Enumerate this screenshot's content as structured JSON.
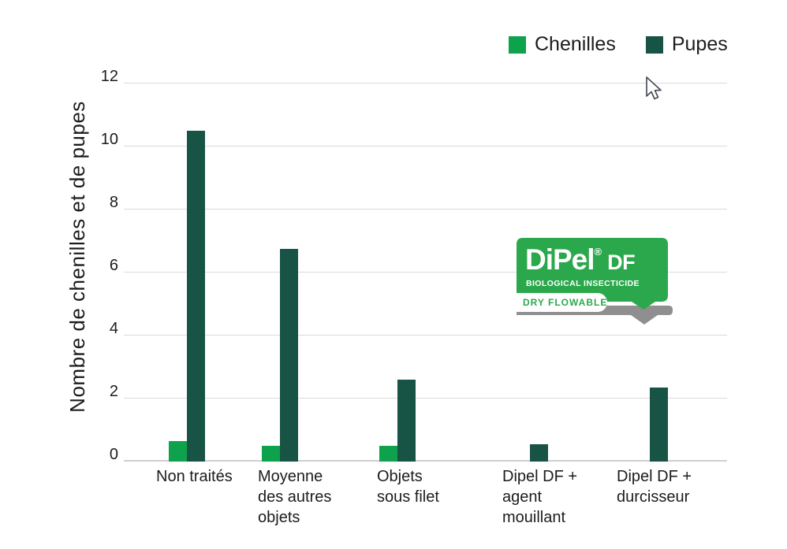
{
  "page": {
    "background": "#FFFFFF"
  },
  "legend": {
    "items": [
      {
        "label": "Chenilles",
        "color": "#0FA24C"
      },
      {
        "label": "Pupes",
        "color": "#175446"
      }
    ]
  },
  "chart_data": {
    "type": "bar",
    "title": "",
    "xlabel": "",
    "ylabel": "Nombre de chenilles et de pupes",
    "ylim": [
      0,
      12
    ],
    "yticks": [
      0,
      2,
      4,
      6,
      8,
      10,
      12
    ],
    "grid": true,
    "legend_position": "top-right",
    "categories": [
      "Non traités",
      "Moyenne des autres objets",
      "Objets sous filet",
      "Dipel DF + agent mouillant",
      "Dipel DF + durcisseur"
    ],
    "series": [
      {
        "name": "Chenilles",
        "color": "#0FA24C",
        "values": [
          0.65,
          0.5,
          0.5,
          0,
          0
        ]
      },
      {
        "name": "Pupes",
        "color": "#175446",
        "values": [
          10.5,
          6.75,
          2.6,
          0.55,
          2.35
        ]
      }
    ]
  },
  "logo": {
    "brand": "DiPel",
    "registered_mark": "®",
    "product_suffix": "DF",
    "subtitle": "BIOLOGICAL INSECTICIDE",
    "banner": "DRY FLOWABLE",
    "green": "#2BA84C",
    "gray": "#8F8F8F"
  },
  "icons": {
    "cursor": "mouse-pointer-arrow",
    "legend_swatches": [
      "chenilles-color-swatch",
      "pupes-color-swatch"
    ]
  },
  "colors": {
    "gridline": "#DADADA",
    "axis_line": "#CFCFCF",
    "text": "#1C1C1C"
  }
}
